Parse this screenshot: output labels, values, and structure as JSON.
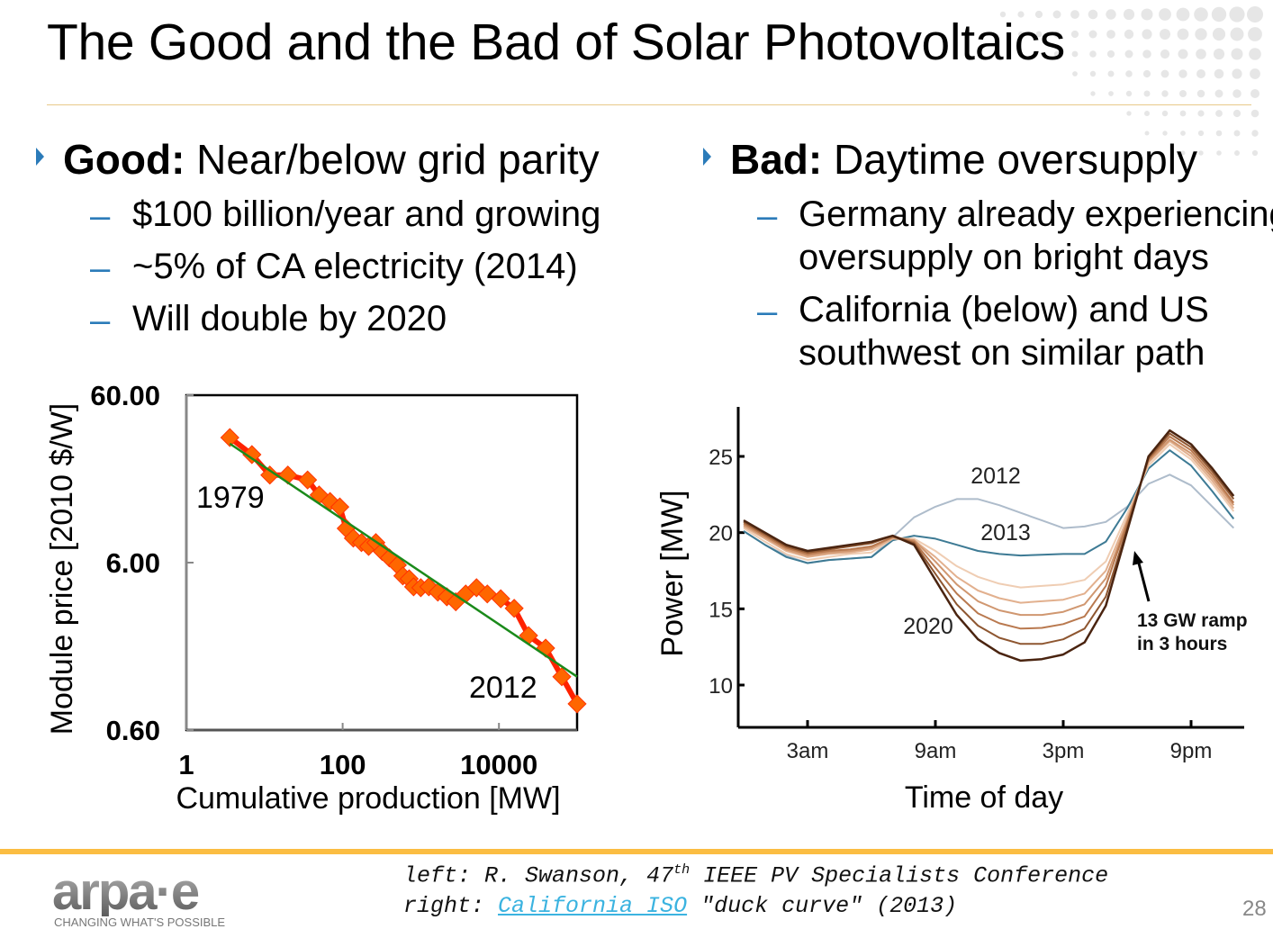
{
  "slide": {
    "title": "The Good and the Bad of Solar Photovoltaics",
    "page_number": "28",
    "accent_color": "#2b7bb9",
    "footer_color": "#fbbd42"
  },
  "left": {
    "heading_bold": "Good:",
    "heading_rest": " Near/below grid parity",
    "items": [
      "$100 billion/year and growing",
      "~5% of CA electricity (2014)",
      "Will double by 2020"
    ]
  },
  "right": {
    "heading_bold": "Bad:",
    "heading_rest": " Daytime oversupply",
    "items": [
      {
        "line1": "Germany already experiencing",
        "line2": "oversupply on bright days"
      },
      {
        "line1": "California (below) and US",
        "line2": "southwest on similar path"
      }
    ]
  },
  "footer": {
    "left_prefix": "left: R. Swanson, 47",
    "left_sup": "th",
    "left_suffix": " IEEE PV Specialists Conference",
    "right_prefix": "right: ",
    "right_link": "California ISO",
    "right_suffix": " \"duck curve\" (2013)",
    "logo_text": "arpa·e",
    "logo_tagline": "CHANGING WHAT'S POSSIBLE"
  },
  "chart_data": [
    {
      "type": "scatter",
      "xscale": "log",
      "yscale": "log",
      "xlabel": "Cumulative production [MW]",
      "ylabel": "Module price [2010 $/W]",
      "xlim": [
        1,
        100000
      ],
      "ylim": [
        0.6,
        60
      ],
      "xticks": [
        {
          "value": 1,
          "label": "1"
        },
        {
          "value": 100,
          "label": "100"
        },
        {
          "value": 10000,
          "label": "10000"
        }
      ],
      "yticks": [
        {
          "value": 60,
          "label": "60.00"
        },
        {
          "value": 6,
          "label": "6.00"
        },
        {
          "value": 0.6,
          "label": "0.60"
        }
      ],
      "grid": false,
      "series_color": "#ff2200",
      "marker_color": "#ff6600",
      "points": [
        [
          3.6,
          33.5
        ],
        [
          6.9,
          26.5
        ],
        [
          11.7,
          20
        ],
        [
          19.9,
          20
        ],
        [
          35.6,
          18.7
        ],
        [
          50,
          15.2
        ],
        [
          69,
          13.9
        ],
        [
          92,
          12.9
        ],
        [
          111,
          9.6
        ],
        [
          137,
          8.4
        ],
        [
          174,
          7.9
        ],
        [
          215,
          7.5
        ],
        [
          266,
          7.9
        ],
        [
          320,
          7.0
        ],
        [
          396,
          6.4
        ],
        [
          502,
          5.8
        ],
        [
          589,
          5.0
        ],
        [
          710,
          4.8
        ],
        [
          809,
          4.3
        ],
        [
          1000,
          4.25
        ],
        [
          1268,
          4.3
        ],
        [
          1652,
          4.0
        ],
        [
          2155,
          3.75
        ],
        [
          2805,
          3.5
        ],
        [
          3758,
          3.9
        ],
        [
          5164,
          4.25
        ],
        [
          7096,
          3.9
        ],
        [
          10550,
          3.65
        ],
        [
          15670,
          3.2
        ],
        [
          23950,
          2.2
        ],
        [
          39600,
          1.85
        ],
        [
          63800,
          1.25
        ],
        [
          100000,
          0.86
        ]
      ],
      "trendline": {
        "color": "#1a8a1a",
        "points": [
          [
            3.6,
            30.8
          ],
          [
            100000,
            1.25
          ]
        ]
      },
      "annotations": [
        {
          "text": "1979"
        },
        {
          "text": "2012"
        }
      ]
    },
    {
      "type": "line",
      "xlabel": "Time of day",
      "ylabel": "Power [MW]",
      "xlim": [
        -0.4,
        23.6
      ],
      "ylim": [
        7.2,
        28.5
      ],
      "xticks": [
        {
          "value": 3,
          "label": "3am"
        },
        {
          "value": 9,
          "label": "9am"
        },
        {
          "value": 15,
          "label": "3pm"
        },
        {
          "value": 21,
          "label": "9pm"
        }
      ],
      "yticks": [
        {
          "value": 25,
          "label": "25"
        },
        {
          "value": 20,
          "label": "20"
        },
        {
          "value": 15,
          "label": "15"
        },
        {
          "value": 10,
          "label": "10"
        }
      ],
      "grid": false,
      "x": [
        0,
        1,
        2,
        3,
        4,
        5,
        6,
        7,
        8,
        9,
        10,
        11,
        12,
        13,
        14,
        15,
        16,
        17,
        18,
        19,
        20,
        21,
        22,
        23
      ],
      "series": [
        {
          "name": "2012",
          "color": "#aebccb",
          "values": [
            20.1,
            19.2,
            18.5,
            18.0,
            18.2,
            18.3,
            18.4,
            19.7,
            21.0,
            21.7,
            22.2,
            22.2,
            21.8,
            21.3,
            20.8,
            20.3,
            20.4,
            20.7,
            21.7,
            23.2,
            23.8,
            23.1,
            21.7,
            20.3
          ]
        },
        {
          "name": "2013",
          "color": "#3d7a94",
          "values": [
            20.1,
            19.2,
            18.4,
            18.0,
            18.2,
            18.3,
            18.4,
            19.5,
            19.8,
            19.6,
            19.2,
            18.8,
            18.6,
            18.5,
            18.55,
            18.6,
            18.6,
            19.4,
            21.6,
            24.2,
            25.4,
            24.4,
            22.7,
            20.9
          ]
        },
        {
          "color": "#efcdb3",
          "values": [
            20.3,
            19.4,
            18.6,
            18.2,
            18.4,
            18.6,
            18.7,
            19.6,
            19.6,
            18.8,
            17.8,
            17.1,
            16.65,
            16.4,
            16.5,
            16.6,
            16.9,
            18.1,
            21.2,
            24.4,
            25.8,
            24.8,
            23.2,
            21.4
          ]
        },
        {
          "color": "#e2b08e",
          "values": [
            20.4,
            19.6,
            18.8,
            18.4,
            18.6,
            18.7,
            18.9,
            19.6,
            19.5,
            18.4,
            17.1,
            16.2,
            15.7,
            15.4,
            15.5,
            15.6,
            16.0,
            17.5,
            20.9,
            24.6,
            26.0,
            25.0,
            23.4,
            21.6
          ]
        },
        {
          "color": "#d09770",
          "values": [
            20.5,
            19.7,
            18.9,
            18.5,
            18.7,
            18.8,
            19.0,
            19.7,
            19.5,
            18.1,
            16.6,
            15.5,
            14.9,
            14.6,
            14.6,
            14.8,
            15.3,
            17.0,
            20.7,
            24.7,
            26.1,
            25.2,
            23.6,
            21.8
          ]
        },
        {
          "color": "#b9794f",
          "values": [
            20.6,
            19.8,
            19.0,
            18.6,
            18.8,
            18.9,
            19.1,
            19.7,
            19.4,
            17.7,
            16.0,
            14.7,
            14.05,
            13.7,
            13.75,
            14.0,
            14.5,
            16.5,
            20.6,
            24.8,
            26.3,
            25.4,
            23.8,
            21.95
          ]
        },
        {
          "color": "#8e5630",
          "values": [
            20.7,
            19.9,
            19.1,
            18.7,
            18.9,
            19.1,
            19.3,
            19.8,
            19.3,
            17.3,
            15.3,
            13.9,
            13.1,
            12.7,
            12.7,
            13.0,
            13.7,
            15.8,
            20.3,
            24.9,
            26.5,
            25.6,
            24.0,
            22.2
          ]
        },
        {
          "name": "2020",
          "color": "#4a2410",
          "values": [
            20.8,
            20.0,
            19.2,
            18.8,
            19.0,
            19.2,
            19.4,
            19.8,
            19.2,
            16.9,
            14.6,
            13.0,
            12.1,
            11.6,
            11.7,
            12.0,
            12.8,
            15.2,
            20.1,
            25.0,
            26.7,
            25.8,
            24.2,
            22.4
          ]
        }
      ],
      "annotations": [
        {
          "text": "2012"
        },
        {
          "text": "2013"
        },
        {
          "text": "2020"
        },
        {
          "text": "13 GW ramp",
          "text2": "in 3 hours"
        }
      ]
    }
  ]
}
